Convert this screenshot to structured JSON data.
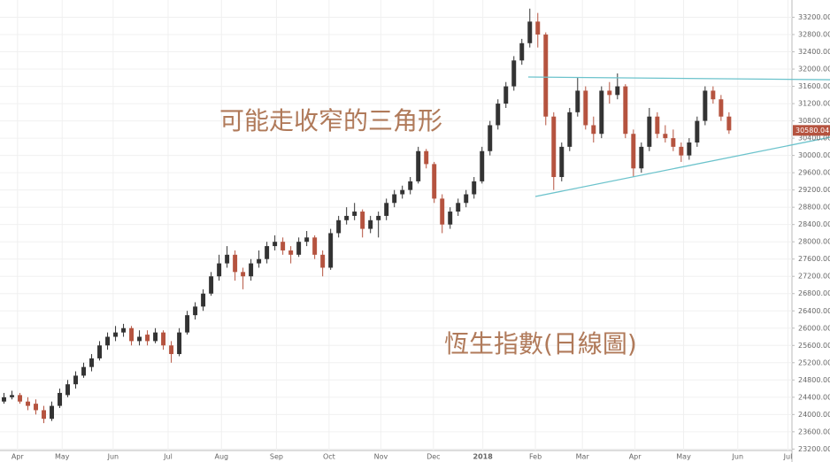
{
  "chart_data": {
    "type": "candlestick",
    "annotations": [
      "可能走收窄的三角形",
      "恆生指數(日線圖)"
    ],
    "up_color": "#333333",
    "down_color": "#b5533f",
    "line_color": "#6cc3cc",
    "grid": true,
    "candles": [
      [
        24300,
        24500,
        24250,
        24400
      ],
      [
        24400,
        24550,
        24350,
        24450
      ],
      [
        24450,
        24500,
        24250,
        24300
      ],
      [
        24300,
        24400,
        24100,
        24200
      ],
      [
        24250,
        24350,
        24000,
        24100
      ],
      [
        24100,
        24200,
        23800,
        23900
      ],
      [
        23900,
        24300,
        23850,
        24200
      ],
      [
        24200,
        24600,
        24150,
        24500
      ],
      [
        24450,
        24800,
        24400,
        24700
      ],
      [
        24700,
        25000,
        24600,
        24900
      ],
      [
        24900,
        25200,
        24850,
        25100
      ],
      [
        25100,
        25400,
        25000,
        25300
      ],
      [
        25300,
        25700,
        25250,
        25600
      ],
      [
        25600,
        25900,
        25500,
        25800
      ],
      [
        25800,
        26050,
        25700,
        25900
      ],
      [
        25900,
        26100,
        25800,
        26000
      ],
      [
        26000,
        26050,
        25600,
        25700
      ],
      [
        25700,
        25950,
        25600,
        25800
      ],
      [
        25850,
        25950,
        25600,
        25700
      ],
      [
        25700,
        26000,
        25650,
        25900
      ],
      [
        25900,
        25950,
        25500,
        25600
      ],
      [
        25600,
        25700,
        25200,
        25400
      ],
      [
        25400,
        26000,
        25350,
        25900
      ],
      [
        25900,
        26400,
        25850,
        26300
      ],
      [
        26300,
        26600,
        26200,
        26500
      ],
      [
        26500,
        26900,
        26400,
        26800
      ],
      [
        26800,
        27300,
        26750,
        27200
      ],
      [
        27200,
        27700,
        27100,
        27500
      ],
      [
        27500,
        27900,
        27400,
        27700
      ],
      [
        27700,
        27800,
        27100,
        27300
      ],
      [
        27300,
        27400,
        26900,
        27200
      ],
      [
        27200,
        27600,
        27100,
        27500
      ],
      [
        27500,
        27800,
        27400,
        27600
      ],
      [
        27600,
        28000,
        27500,
        27900
      ],
      [
        27900,
        28150,
        27800,
        28000
      ],
      [
        28000,
        28100,
        27700,
        27800
      ],
      [
        27800,
        27900,
        27500,
        27700
      ],
      [
        27700,
        28100,
        27650,
        28000
      ],
      [
        28000,
        28250,
        27900,
        28100
      ],
      [
        28100,
        28150,
        27600,
        27700
      ],
      [
        27700,
        27800,
        27200,
        27400
      ],
      [
        27400,
        28300,
        27350,
        28200
      ],
      [
        28200,
        28600,
        28100,
        28500
      ],
      [
        28500,
        28800,
        28400,
        28600
      ],
      [
        28600,
        28900,
        28500,
        28700
      ],
      [
        28700,
        28750,
        28100,
        28300
      ],
      [
        28300,
        28600,
        28200,
        28500
      ],
      [
        28500,
        28700,
        28100,
        28600
      ],
      [
        28600,
        29000,
        28500,
        28900
      ],
      [
        28900,
        29200,
        28800,
        29100
      ],
      [
        29100,
        29300,
        29000,
        29200
      ],
      [
        29200,
        29500,
        29100,
        29400
      ],
      [
        29400,
        30200,
        29350,
        30100
      ],
      [
        30100,
        30150,
        29700,
        29800
      ],
      [
        29800,
        29850,
        28900,
        29000
      ],
      [
        29000,
        29100,
        28200,
        28400
      ],
      [
        28400,
        28800,
        28300,
        28700
      ],
      [
        28700,
        29000,
        28600,
        28900
      ],
      [
        28900,
        29200,
        28800,
        29100
      ],
      [
        29100,
        29500,
        29000,
        29400
      ],
      [
        29400,
        30200,
        29350,
        30100
      ],
      [
        30100,
        30800,
        30000,
        30700
      ],
      [
        30700,
        31300,
        30600,
        31200
      ],
      [
        31200,
        31700,
        31100,
        31600
      ],
      [
        31600,
        32300,
        31500,
        32200
      ],
      [
        32200,
        32700,
        32100,
        32600
      ],
      [
        32600,
        33400,
        32500,
        33100
      ],
      [
        33100,
        33300,
        32500,
        32800
      ],
      [
        32800,
        32850,
        30700,
        30900
      ],
      [
        30900,
        31000,
        29200,
        29500
      ],
      [
        29500,
        30300,
        29400,
        30200
      ],
      [
        30200,
        31100,
        30100,
        31000
      ],
      [
        31000,
        31800,
        30900,
        31500
      ],
      [
        31500,
        31600,
        30600,
        30700
      ],
      [
        30700,
        30900,
        30300,
        30500
      ],
      [
        30500,
        31600,
        30400,
        31500
      ],
      [
        31500,
        31700,
        31200,
        31400
      ],
      [
        31400,
        31900,
        31300,
        31600
      ],
      [
        31600,
        31650,
        30400,
        30500
      ],
      [
        30500,
        30600,
        29500,
        29700
      ],
      [
        29700,
        30300,
        29600,
        30200
      ],
      [
        30200,
        31100,
        30100,
        30900
      ],
      [
        30900,
        31000,
        30400,
        30500
      ],
      [
        30500,
        30700,
        30300,
        30400
      ],
      [
        30400,
        30600,
        30100,
        30200
      ],
      [
        30200,
        30300,
        29850,
        30000
      ],
      [
        30000,
        30400,
        29900,
        30300
      ],
      [
        30300,
        30900,
        30200,
        30800
      ],
      [
        30800,
        31600,
        30700,
        31500
      ],
      [
        31500,
        31600,
        31200,
        31300
      ],
      [
        31300,
        31400,
        30800,
        30900
      ],
      [
        30900,
        31000,
        30500,
        30580.04
      ]
    ],
    "trendlines": [
      {
        "x": [
          66.3,
          104.2
        ],
        "y": [
          31816,
          31754
        ]
      },
      {
        "x": [
          67.2,
          104.2
        ],
        "y": [
          29049,
          30422
        ]
      }
    ],
    "xlim": [
      0,
      99.4
    ],
    "xticks": [
      {
        "value": 2.2,
        "label": "Apr"
      },
      {
        "value": 7.8,
        "label": "May"
      },
      {
        "value": 14.2,
        "label": "Jun"
      },
      {
        "value": 21.1,
        "label": "Jul"
      },
      {
        "value": 27.8,
        "label": "Aug"
      },
      {
        "value": 34.7,
        "label": "Sep"
      },
      {
        "value": 41.3,
        "label": "Oct"
      },
      {
        "value": 47.8,
        "label": "Nov"
      },
      {
        "value": 54.4,
        "label": "Dec"
      },
      {
        "value": 60.6,
        "label": "2018"
      },
      {
        "value": 67.2,
        "label": "Feb"
      },
      {
        "value": 73.1,
        "label": "Mar"
      },
      {
        "value": 79.7,
        "label": "Apr"
      },
      {
        "value": 85.8,
        "label": "May"
      },
      {
        "value": 92.6,
        "label": "Jun"
      },
      {
        "value": 98.9,
        "label": "Jul"
      }
    ],
    "ylim": [
      22900,
      33600
    ],
    "yticks": [
      {
        "value": 23200,
        "label": "23200.00"
      },
      {
        "value": 23600,
        "label": "23600.00"
      },
      {
        "value": 24000,
        "label": "24000.00"
      },
      {
        "value": 24400,
        "label": "24400.00"
      },
      {
        "value": 24800,
        "label": "24800.00"
      },
      {
        "value": 25200,
        "label": "25200.00"
      },
      {
        "value": 25600,
        "label": "25600.00"
      },
      {
        "value": 26000,
        "label": "26000.00"
      },
      {
        "value": 26400,
        "label": "26400.00"
      },
      {
        "value": 26800,
        "label": "26800.00"
      },
      {
        "value": 27200,
        "label": "27200.00"
      },
      {
        "value": 27600,
        "label": "27600.00"
      },
      {
        "value": 28000,
        "label": "28000.00"
      },
      {
        "value": 28400,
        "label": "28400.00"
      },
      {
        "value": 28800,
        "label": "28800.00"
      },
      {
        "value": 29200,
        "label": "29200.00"
      },
      {
        "value": 29600,
        "label": "29600.00"
      },
      {
        "value": 30000,
        "label": "30000.00"
      },
      {
        "value": 30400,
        "label": "30400.00"
      },
      {
        "value": 30800,
        "label": "30800.00"
      },
      {
        "value": 31200,
        "label": "31200.00"
      },
      {
        "value": 31600,
        "label": "31600.00"
      },
      {
        "value": 32000,
        "label": "32000.00"
      },
      {
        "value": 32400,
        "label": "32400.00"
      },
      {
        "value": 32800,
        "label": "32800.00"
      },
      {
        "value": 33200,
        "label": "33200.00"
      }
    ]
  }
}
